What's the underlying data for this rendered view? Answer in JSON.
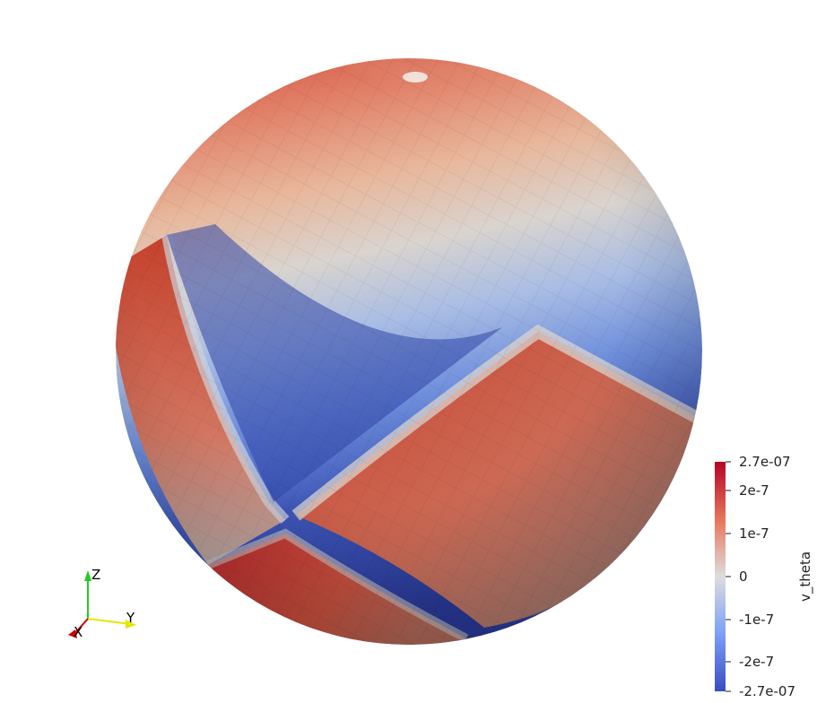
{
  "scalar_bar": {
    "title": "v_theta",
    "labels": [
      "2.7e-07",
      "2e-7",
      "1e-7",
      "0",
      "-1e-7",
      "-2e-7",
      "-2.7e-07"
    ],
    "colors": {
      "max": "#b40426",
      "mid": "#dddddd",
      "min": "#3b4cc0"
    }
  },
  "axes_triad": {
    "z_label": "Z",
    "y_label": "Y",
    "x_label": "X",
    "colors": {
      "z": "#22cc22",
      "y": "#e6e600",
      "x": "#cc0000"
    }
  },
  "sphere": {
    "colors": {
      "deep_red": "#b40426",
      "red": "#d65244",
      "light_red": "#eca58a",
      "neutral": "#d9d7d4",
      "light_blue": "#9ab3e6",
      "blue": "#5a7bd8",
      "deep_blue": "#2a3a9a"
    }
  }
}
